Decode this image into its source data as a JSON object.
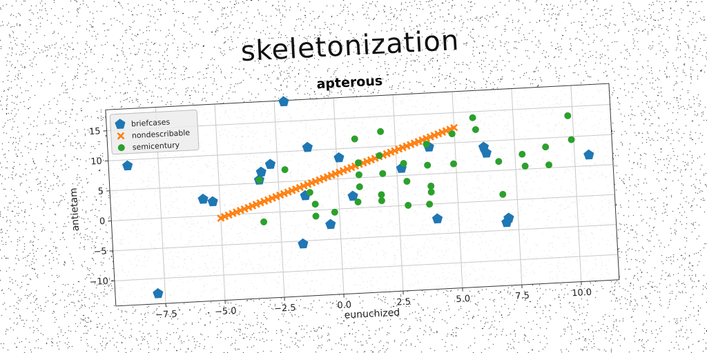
{
  "title": "skeletonization",
  "chart_data": {
    "type": "scatter",
    "title": "apterous",
    "xlabel": "eunuchized",
    "ylabel": "antietam",
    "xlim": [
      -9.6,
      11.6
    ],
    "ylim": [
      -14.2,
      18.5
    ],
    "xticks": [
      -7.5,
      -5.0,
      -2.5,
      0.0,
      2.5,
      5.0,
      7.5,
      10.0
    ],
    "xtick_labels": [
      "−7.5",
      "−5.0",
      "−2.5",
      "0.0",
      "2.5",
      "5.0",
      "7.5",
      "10.0"
    ],
    "yticks": [
      -10,
      -5,
      0,
      5,
      10,
      15
    ],
    "ytick_labels": [
      "−10",
      "−5",
      "0",
      "5",
      "10",
      "15"
    ],
    "grid": true,
    "legend_position": "top-left",
    "series": [
      {
        "name": "briefcases",
        "marker": "pentagon",
        "color": "#1f77b4",
        "points": [
          [
            -8.8,
            9.0
          ],
          [
            -7.8,
            -12.5
          ],
          [
            -2.1,
            18.3
          ],
          [
            -5.7,
            2.8
          ],
          [
            -5.3,
            2.3
          ],
          [
            -2.8,
            8.0
          ],
          [
            -3.2,
            6.8
          ],
          [
            -3.3,
            5.5
          ],
          [
            -1.2,
            10.5
          ],
          [
            -1.4,
            2.5
          ],
          [
            -0.4,
            -2.5
          ],
          [
            0.1,
            8.5
          ],
          [
            -1.6,
            -5.5
          ],
          [
            0.6,
            2.0
          ],
          [
            2.7,
            6.2
          ],
          [
            4.1,
            -2.5
          ],
          [
            3.9,
            9.5
          ],
          [
            6.2,
            9.0
          ],
          [
            6.3,
            8.0
          ],
          [
            7.1,
            -3.0
          ],
          [
            7.0,
            -3.7
          ],
          [
            10.6,
            6.8
          ]
        ]
      },
      {
        "name": "nondescribable",
        "marker": "x",
        "color": "#ff7f0e",
        "line": {
          "x_start": -5.0,
          "y_start": -0.5,
          "x_end": 5.0,
          "y_end": 12.5,
          "count": 60
        }
      },
      {
        "name": "semicentury",
        "marker": "circle",
        "color": "#2ca02c",
        "points": [
          [
            -3.3,
            5.5
          ],
          [
            -3.2,
            -1.5
          ],
          [
            -2.2,
            7.0
          ],
          [
            -1.2,
            3.0
          ],
          [
            -1.0,
            1.0
          ],
          [
            -1.0,
            -1.0
          ],
          [
            -0.2,
            -0.5
          ],
          [
            0.8,
            11.5
          ],
          [
            0.9,
            7.5
          ],
          [
            0.9,
            5.5
          ],
          [
            0.9,
            3.5
          ],
          [
            0.8,
            1.0
          ],
          [
            1.9,
            12.5
          ],
          [
            1.8,
            8.5
          ],
          [
            1.9,
            5.5
          ],
          [
            1.8,
            2.0
          ],
          [
            1.8,
            1.0
          ],
          [
            2.8,
            7.0
          ],
          [
            2.9,
            4.0
          ],
          [
            2.9,
            0.0
          ],
          [
            3.8,
            10.0
          ],
          [
            3.8,
            6.5
          ],
          [
            3.9,
            3.0
          ],
          [
            3.9,
            2.0
          ],
          [
            3.8,
            0.0
          ],
          [
            4.9,
            11.5
          ],
          [
            4.9,
            6.5
          ],
          [
            5.8,
            14.0
          ],
          [
            5.9,
            12.0
          ],
          [
            6.8,
            6.5
          ],
          [
            6.9,
            1.0
          ],
          [
            7.8,
            7.5
          ],
          [
            7.9,
            5.5
          ],
          [
            8.8,
            8.5
          ],
          [
            8.9,
            5.5
          ],
          [
            9.8,
            13.5
          ],
          [
            9.9,
            9.5
          ]
        ]
      }
    ]
  }
}
